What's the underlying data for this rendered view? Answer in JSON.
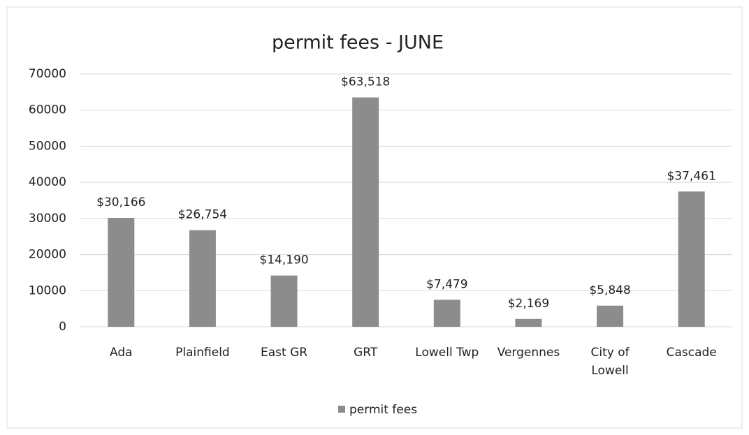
{
  "chart_data": {
    "type": "bar",
    "title": "permit fees - JUNE",
    "categories": [
      "Ada",
      "Plainfield",
      "East GR",
      "GRT",
      "Lowell Twp",
      "Vergennes",
      "City of\nLowell",
      "Cascade"
    ],
    "series": [
      {
        "name": "permit fees",
        "color": "#8c8c8c",
        "values": [
          30166,
          26754,
          14190,
          63518,
          7479,
          2169,
          5848,
          37461
        ],
        "value_labels": [
          "$30,166",
          "$26,754",
          "$14,190",
          "$63,518",
          "$7,479",
          "$2,169",
          "$5,848",
          "$37,461"
        ]
      }
    ],
    "ylim": [
      0,
      70000
    ],
    "yticks": [
      0,
      10000,
      20000,
      30000,
      40000,
      50000,
      60000,
      70000
    ],
    "grid": true,
    "legend": "bottom"
  }
}
